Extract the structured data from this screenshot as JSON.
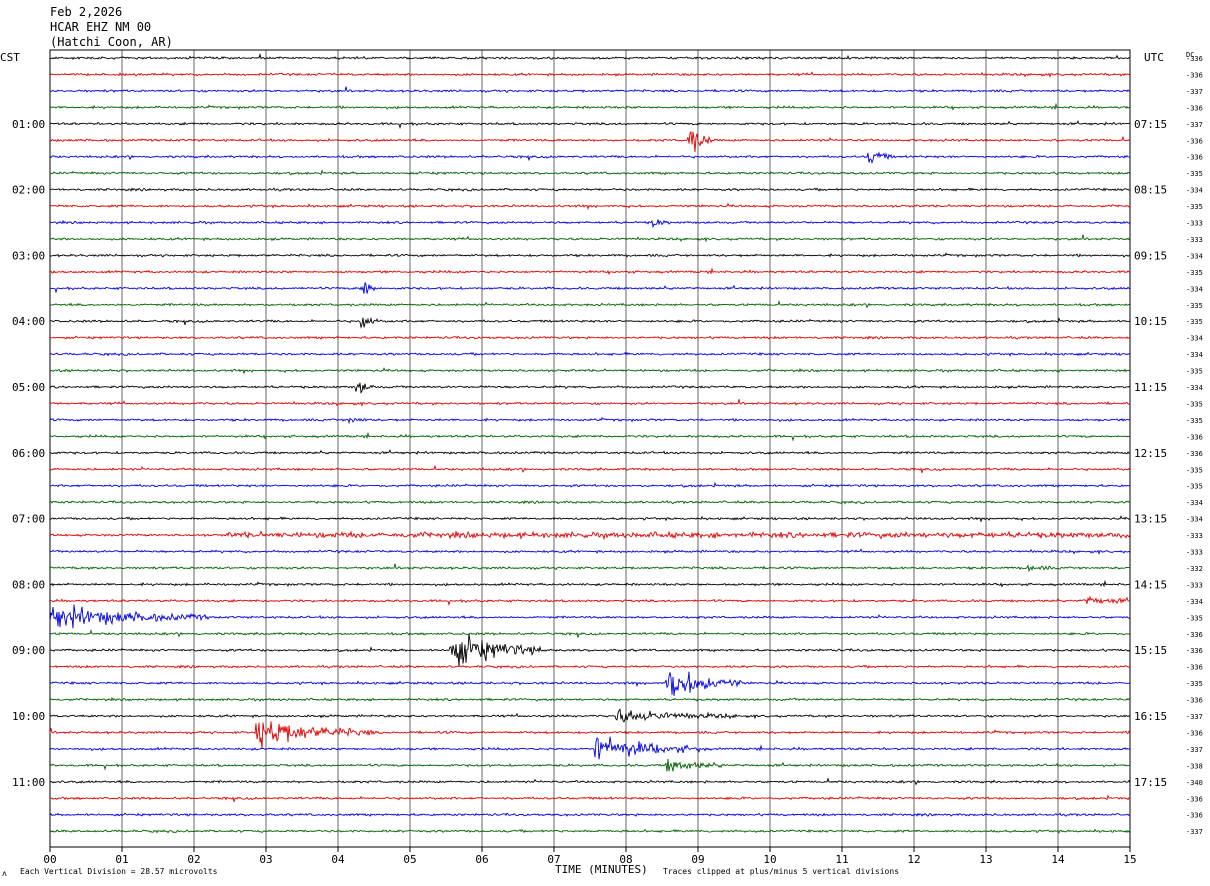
{
  "header": {
    "date": "Feb 2,2026",
    "station": "HCAR EHZ NM 00",
    "location": "(Hatchi Coon, AR)"
  },
  "left_timezone": "CST",
  "right_timezone": "UTC",
  "dc_label": "DC",
  "footer": {
    "corner_mark": "ʌ",
    "division_note": "Each Vertical Division =   28.57 microvolts",
    "clip_note": "Traces clipped at plus/minus 5 vertical divisions"
  },
  "colors": {
    "cycle": [
      "#000000",
      "#e00000",
      "#0000e0",
      "#006000"
    ],
    "grid": "#000000"
  },
  "chart_data": {
    "type": "line",
    "subtype": "helicorder",
    "title": "HCAR EHZ NM 00",
    "xlabel": "TIME (MINUTES)",
    "xlim": [
      0,
      15
    ],
    "x_ticks": [
      "00",
      "01",
      "02",
      "03",
      "04",
      "05",
      "06",
      "07",
      "08",
      "09",
      "10",
      "11",
      "12",
      "13",
      "14",
      "15"
    ],
    "grid": true,
    "minutes_per_line": 15,
    "line_count": 48,
    "left_time_labels": [
      "01:00",
      "02:00",
      "03:00",
      "04:00",
      "05:00",
      "06:00",
      "07:00",
      "08:00",
      "09:00",
      "10:00",
      "11:00"
    ],
    "right_time_labels": [
      "07:15",
      "08:15",
      "09:15",
      "10:15",
      "11:15",
      "12:15",
      "13:15",
      "14:15",
      "15:15",
      "16:15",
      "17:15"
    ],
    "dc_offsets": [
      "-336",
      "-336",
      "-337",
      "-336",
      "-337",
      "-336",
      "-336",
      "-335",
      "-334",
      "-335",
      "-333",
      "-333",
      "-334",
      "-335",
      "-334",
      "-335",
      "-335",
      "-334",
      "-334",
      "-335",
      "-334",
      "-335",
      "-335",
      "-336",
      "-336",
      "-335",
      "-335",
      "-334",
      "-334",
      "-333",
      "-333",
      "-332",
      "-333",
      "-334",
      "-335",
      "-336",
      "-336",
      "-336",
      "-335",
      "-336",
      "-337",
      "-336",
      "-337",
      "-338",
      "-340",
      "-336",
      "-336",
      "-337"
    ],
    "units": "microvolts",
    "microvolts_per_division": 28.57,
    "clip_divisions": 5,
    "events": [
      {
        "line": 5,
        "minute": 8.9,
        "amplitude": 3.0,
        "duration": 0.3
      },
      {
        "line": 6,
        "minute": 11.4,
        "amplitude": 1.5,
        "duration": 0.3
      },
      {
        "line": 10,
        "minute": 8.4,
        "amplitude": 0.8,
        "duration": 0.2
      },
      {
        "line": 14,
        "minute": 4.35,
        "amplitude": 2.5,
        "duration": 0.2
      },
      {
        "line": 16,
        "minute": 4.35,
        "amplitude": 1.8,
        "duration": 0.2
      },
      {
        "line": 20,
        "minute": 4.3,
        "amplitude": 1.5,
        "duration": 0.2
      },
      {
        "line": 22,
        "minute": 4.2,
        "amplitude": 0.8,
        "duration": 0.2
      },
      {
        "line": 29,
        "minute": 2.5,
        "amplitude": 0.3,
        "duration": 12.5
      },
      {
        "line": 31,
        "minute": 13.6,
        "amplitude": 0.6,
        "duration": 0.3
      },
      {
        "line": 33,
        "minute": 14.4,
        "amplitude": 0.8,
        "duration": 0.8
      },
      {
        "line": 34,
        "minute": 0.0,
        "amplitude": 2.4,
        "duration": 2.2
      },
      {
        "line": 36,
        "minute": 5.6,
        "amplitude": 3.5,
        "duration": 1.3
      },
      {
        "line": 38,
        "minute": 8.6,
        "amplitude": 3.5,
        "duration": 1.0
      },
      {
        "line": 40,
        "minute": 7.9,
        "amplitude": 1.2,
        "duration": 1.7
      },
      {
        "line": 41,
        "minute": 2.9,
        "amplitude": 2.8,
        "duration": 1.6
      },
      {
        "line": 42,
        "minute": 7.6,
        "amplitude": 2.5,
        "duration": 1.5
      },
      {
        "line": 43,
        "minute": 8.6,
        "amplitude": 1.2,
        "duration": 0.8
      }
    ]
  }
}
